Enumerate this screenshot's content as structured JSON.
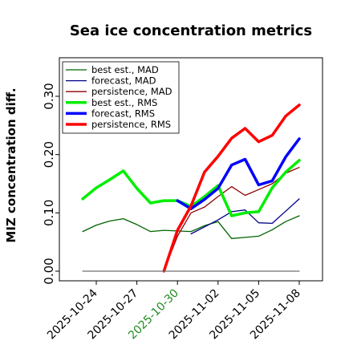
{
  "chart_data": {
    "type": "line",
    "title": "Sea ice concentration metrics",
    "ylabel": "MIZ concentration diff.",
    "xlabel": "",
    "ylim": [
      0.0,
      0.33
    ],
    "yticks": [
      0.0,
      0.1,
      0.2,
      0.3
    ],
    "ytick_labels": [
      "0.00",
      "0.10",
      "0.20",
      "0.30"
    ],
    "x_ticks": [
      "2025-10-24",
      "2025-10-27",
      "2025-10-30",
      "2025-11-02",
      "2025-11-05",
      "2025-11-08"
    ],
    "highlighted_tick": "2025-10-30",
    "highlight_color": "#228b22",
    "legend_position": "upper-left",
    "grid": false,
    "series": [
      {
        "name": "best est., MAD",
        "color": "#006400",
        "width": 1.3,
        "points": [
          {
            "x": "2025-10-23",
            "y": 0.068
          },
          {
            "x": "2025-10-24",
            "y": 0.079
          },
          {
            "x": "2025-10-25",
            "y": 0.086
          },
          {
            "x": "2025-10-26",
            "y": 0.09
          },
          {
            "x": "2025-10-27",
            "y": 0.08
          },
          {
            "x": "2025-10-28",
            "y": 0.068
          },
          {
            "x": "2025-10-29",
            "y": 0.07
          },
          {
            "x": "2025-10-30",
            "y": 0.069
          },
          {
            "x": "2025-10-31",
            "y": 0.068
          },
          {
            "x": "2025-11-01",
            "y": 0.078
          },
          {
            "x": "2025-11-02",
            "y": 0.085
          },
          {
            "x": "2025-11-03",
            "y": 0.056
          },
          {
            "x": "2025-11-04",
            "y": 0.058
          },
          {
            "x": "2025-11-05",
            "y": 0.06
          },
          {
            "x": "2025-11-06",
            "y": 0.071
          },
          {
            "x": "2025-11-07",
            "y": 0.085
          },
          {
            "x": "2025-11-08",
            "y": 0.095
          }
        ]
      },
      {
        "name": "forecast,  MAD",
        "color": "#00008b",
        "width": 1.3,
        "points": [
          {
            "x": "2025-10-31",
            "y": 0.064
          },
          {
            "x": "2025-11-01",
            "y": 0.076
          },
          {
            "x": "2025-11-02",
            "y": 0.088
          },
          {
            "x": "2025-11-03",
            "y": 0.102
          },
          {
            "x": "2025-11-04",
            "y": 0.105
          },
          {
            "x": "2025-11-05",
            "y": 0.083
          },
          {
            "x": "2025-11-06",
            "y": 0.082
          },
          {
            "x": "2025-11-07",
            "y": 0.103
          },
          {
            "x": "2025-11-08",
            "y": 0.124
          }
        ]
      },
      {
        "name": "persistence, MAD",
        "color": "#8b0000",
        "width": 1.3,
        "points": [
          {
            "x": "2025-10-29",
            "y": 0.0
          },
          {
            "x": "2025-10-30",
            "y": 0.06
          },
          {
            "x": "2025-10-31",
            "y": 0.1
          },
          {
            "x": "2025-11-01",
            "y": 0.11
          },
          {
            "x": "2025-11-02",
            "y": 0.128
          },
          {
            "x": "2025-11-03",
            "y": 0.145
          },
          {
            "x": "2025-11-04",
            "y": 0.13
          },
          {
            "x": "2025-11-05",
            "y": 0.14
          },
          {
            "x": "2025-11-06",
            "y": 0.15
          },
          {
            "x": "2025-11-07",
            "y": 0.168
          },
          {
            "x": "2025-11-08",
            "y": 0.178
          }
        ]
      },
      {
        "name": "best est., RMS",
        "color": "#00ee00",
        "width": 3.5,
        "points": [
          {
            "x": "2025-10-23",
            "y": 0.124
          },
          {
            "x": "2025-10-24",
            "y": 0.143
          },
          {
            "x": "2025-10-25",
            "y": 0.157
          },
          {
            "x": "2025-10-26",
            "y": 0.172
          },
          {
            "x": "2025-10-27",
            "y": 0.142
          },
          {
            "x": "2025-10-28",
            "y": 0.117
          },
          {
            "x": "2025-10-29",
            "y": 0.121
          },
          {
            "x": "2025-10-30",
            "y": 0.121
          },
          {
            "x": "2025-10-31",
            "y": 0.111
          },
          {
            "x": "2025-11-01",
            "y": 0.128
          },
          {
            "x": "2025-11-02",
            "y": 0.147
          },
          {
            "x": "2025-11-03",
            "y": 0.095
          },
          {
            "x": "2025-11-04",
            "y": 0.1
          },
          {
            "x": "2025-11-05",
            "y": 0.102
          },
          {
            "x": "2025-11-06",
            "y": 0.143
          },
          {
            "x": "2025-11-07",
            "y": 0.17
          },
          {
            "x": "2025-11-08",
            "y": 0.19
          }
        ]
      },
      {
        "name": "forecast,  RMS",
        "color": "#0000ff",
        "width": 3.5,
        "points": [
          {
            "x": "2025-10-30",
            "y": 0.121
          },
          {
            "x": "2025-10-31",
            "y": 0.107
          },
          {
            "x": "2025-11-01",
            "y": 0.123
          },
          {
            "x": "2025-11-02",
            "y": 0.142
          },
          {
            "x": "2025-11-03",
            "y": 0.182
          },
          {
            "x": "2025-11-04",
            "y": 0.192
          },
          {
            "x": "2025-11-05",
            "y": 0.148
          },
          {
            "x": "2025-11-06",
            "y": 0.155
          },
          {
            "x": "2025-11-07",
            "y": 0.196
          },
          {
            "x": "2025-11-08",
            "y": 0.227
          }
        ]
      },
      {
        "name": "persistence, RMS",
        "color": "#ff0000",
        "width": 3.5,
        "points": [
          {
            "x": "2025-10-29",
            "y": 0.0
          },
          {
            "x": "2025-10-30",
            "y": 0.07
          },
          {
            "x": "2025-10-31",
            "y": 0.112
          },
          {
            "x": "2025-11-01",
            "y": 0.17
          },
          {
            "x": "2025-11-02",
            "y": 0.197
          },
          {
            "x": "2025-11-03",
            "y": 0.228
          },
          {
            "x": "2025-11-04",
            "y": 0.245
          },
          {
            "x": "2025-11-05",
            "y": 0.222
          },
          {
            "x": "2025-11-06",
            "y": 0.233
          },
          {
            "x": "2025-11-07",
            "y": 0.266
          },
          {
            "x": "2025-11-08",
            "y": 0.285
          }
        ]
      },
      {
        "name": "",
        "color": "#707070",
        "width": 1.2,
        "points": [
          {
            "x": "2025-10-23",
            "y": 0.0
          },
          {
            "x": "2025-11-08",
            "y": 0.0
          }
        ]
      }
    ]
  }
}
